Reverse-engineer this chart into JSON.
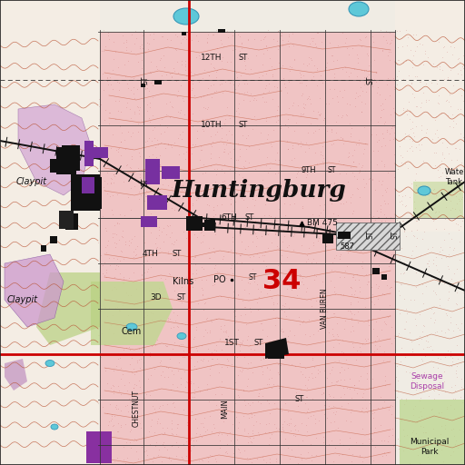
{
  "bg_color": "#f0ece4",
  "urban_color": "#f0c8c8",
  "contour_color": "#b85030",
  "road_red_color": "#cc0000",
  "street_color": "#444444",
  "water_color": "#5ab8d0",
  "veg_light": "#c8d8a0",
  "veg_dark": "#a8c880",
  "clay_color": "#c898c8",
  "clay_hatch": "#a060a0",
  "building_color": "#111111",
  "purple_color": "#7730a0",
  "hatch_gray": "#aaaaaa",
  "text_main": "Huntingburg",
  "text_34": "34",
  "label_bm": "BM 475",
  "label_po": "PO",
  "label_claypit1": "Claypit",
  "label_claypit2": "Claypit",
  "label_kilns": "Kilns",
  "label_water_tank": "Wate\nTank",
  "label_sewage": "Sewage\nDisposal",
  "label_muni": "Municipal\nPark",
  "label_cem": "Cem",
  "label_587": "587"
}
